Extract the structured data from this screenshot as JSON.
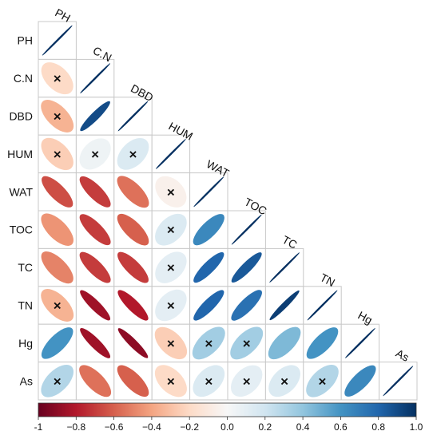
{
  "chart_data": {
    "type": "heatmap",
    "subtype": "correlation-ellipse-lower-triangle",
    "variables": [
      "PH",
      "C.N",
      "DBD",
      "HUM",
      "WAT",
      "TOC",
      "TC",
      "TN",
      "Hg",
      "As"
    ],
    "matrix": [
      [
        1.0,
        -0.2,
        -0.35,
        -0.25,
        -0.65,
        -0.45,
        -0.5,
        -0.35,
        0.6,
        0.3
      ],
      [
        -0.2,
        1.0,
        0.9,
        0.05,
        -0.7,
        -0.7,
        -0.7,
        -0.85,
        -0.85,
        -0.55
      ],
      [
        -0.35,
        0.9,
        1.0,
        0.15,
        -0.55,
        -0.6,
        -0.7,
        -0.8,
        -0.9,
        -0.6
      ],
      [
        -0.25,
        0.05,
        0.15,
        1.0,
        -0.05,
        0.15,
        0.1,
        0.1,
        -0.25,
        -0.2
      ],
      [
        -0.65,
        -0.7,
        -0.55,
        -0.05,
        1.0,
        0.65,
        0.8,
        0.8,
        0.35,
        0.15
      ],
      [
        -0.45,
        -0.7,
        -0.6,
        0.15,
        0.65,
        1.0,
        0.85,
        0.75,
        0.35,
        0.1
      ],
      [
        -0.5,
        -0.7,
        -0.7,
        0.1,
        0.8,
        0.85,
        1.0,
        0.95,
        0.45,
        0.15
      ],
      [
        -0.35,
        -0.85,
        -0.8,
        0.1,
        0.8,
        0.75,
        0.95,
        1.0,
        0.6,
        0.3
      ],
      [
        0.6,
        -0.85,
        -0.9,
        -0.25,
        0.35,
        0.35,
        0.45,
        0.6,
        1.0,
        0.65
      ],
      [
        0.3,
        -0.55,
        -0.6,
        -0.2,
        0.15,
        0.1,
        0.15,
        0.3,
        0.65,
        1.0
      ]
    ],
    "not_significant": [
      [
        1,
        0
      ],
      [
        2,
        0
      ],
      [
        3,
        0
      ],
      [
        3,
        1
      ],
      [
        3,
        2
      ],
      [
        4,
        3
      ],
      [
        5,
        3
      ],
      [
        6,
        3
      ],
      [
        7,
        0
      ],
      [
        7,
        3
      ],
      [
        8,
        3
      ],
      [
        8,
        4
      ],
      [
        8,
        5
      ],
      [
        9,
        0
      ],
      [
        9,
        3
      ],
      [
        9,
        4
      ],
      [
        9,
        5
      ],
      [
        9,
        6
      ],
      [
        9,
        7
      ]
    ],
    "not_significant_marker": "×",
    "colorbar": {
      "range": [
        -1,
        1
      ],
      "ticks": [
        -1,
        -0.8,
        -0.6,
        -0.4,
        -0.2,
        0.0,
        0.2,
        0.4,
        0.6,
        0.8,
        1.0
      ],
      "tick_labels": [
        "-1",
        "−0.8",
        "−0.6",
        "−0.4",
        "−0.2",
        "0.0",
        "0.2",
        "0.4",
        "0.6",
        "0.8",
        "1.0"
      ],
      "stops": [
        "#67001f",
        "#b2182b",
        "#d6604d",
        "#f4a582",
        "#fddbc7",
        "#f7f7f7",
        "#d1e5f0",
        "#92c5de",
        "#4393c3",
        "#2166ac",
        "#053061"
      ]
    },
    "grid_color": "#c8c8c8"
  }
}
